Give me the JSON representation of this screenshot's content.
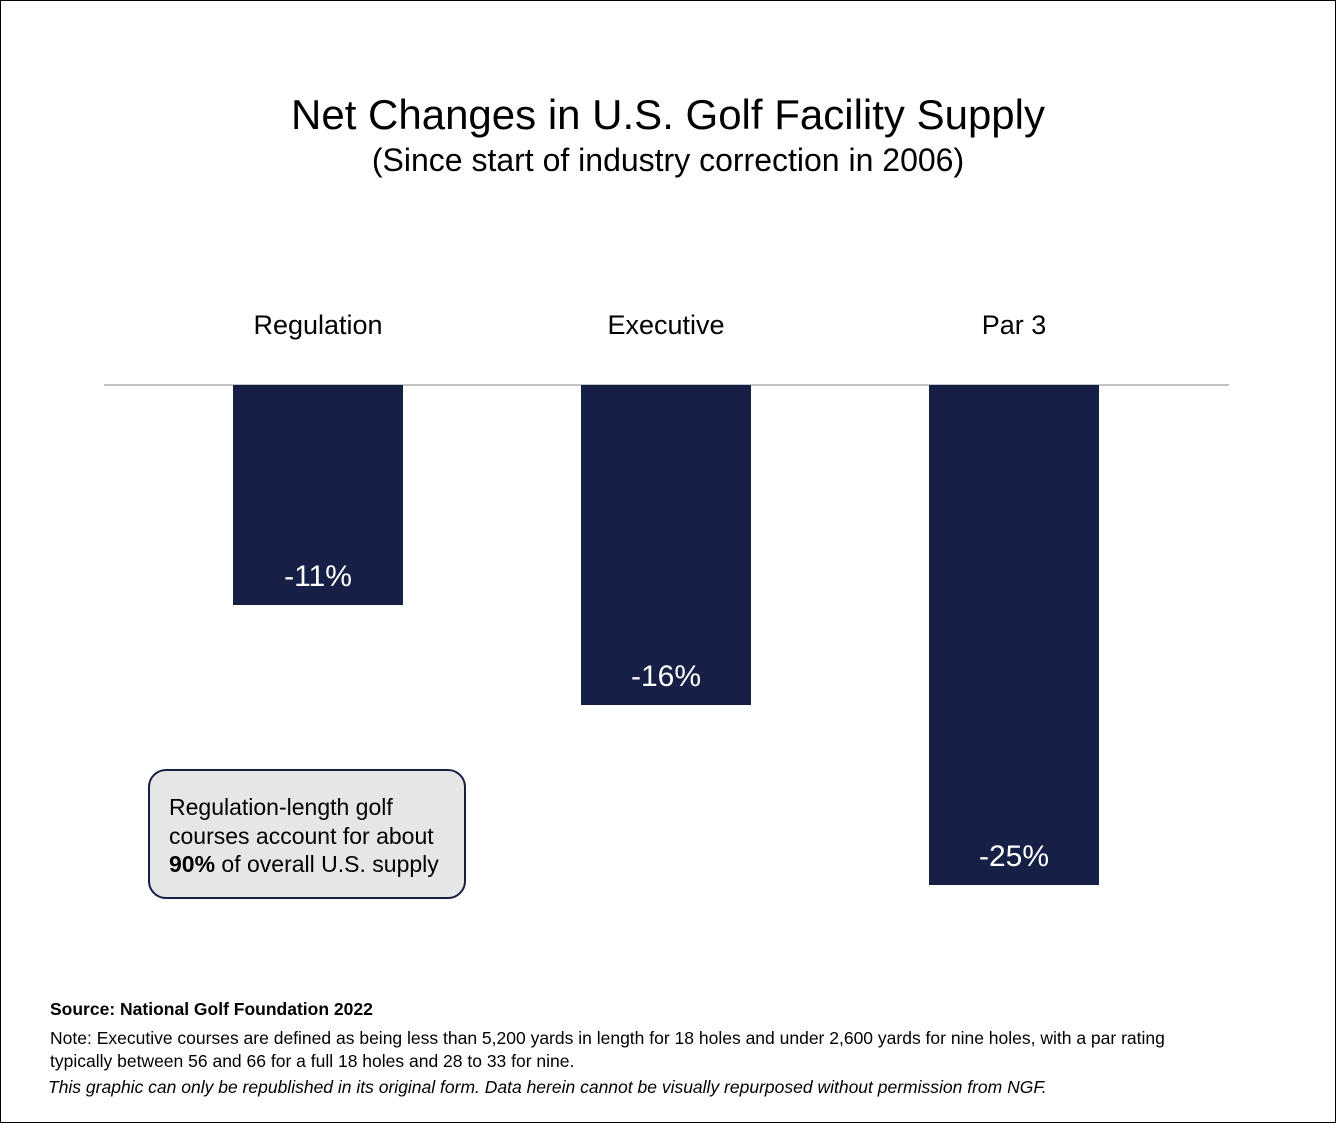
{
  "chart_data": {
    "type": "bar",
    "title": "Net Changes in U.S. Golf Facility Supply",
    "subtitle": "(Since start of industry correction in 2006)",
    "categories": [
      "Regulation",
      "Executive",
      "Par 3"
    ],
    "values": [
      -11,
      -16,
      -25
    ],
    "value_labels": [
      "-11%",
      "-16%",
      "-25%"
    ],
    "ylim": [
      -25,
      0
    ],
    "grid": false,
    "category_labels_position": "top",
    "bar_color": "#161f46",
    "label_color": "#ffffff"
  },
  "callout": {
    "line1": "Regulation-length golf",
    "line2": "courses account for about",
    "line3_bold": "90%",
    "line3_rest": " of overall U.S. supply"
  },
  "footer": {
    "source": "Source: National Golf Foundation 2022",
    "note": "Note: Executive courses are defined as being less than 5,200 yards in length for 18 holes and under 2,600 yards for nine holes, with a par rating typically between 56 and 66 for a full 18 holes and 28 to 33 for nine.",
    "disclaimer": "This graphic can only be republished in its original form. Data herein cannot be visually repurposed without permission from NGF."
  },
  "colors": {
    "bar": "#161f46",
    "baseline": "#888888",
    "callout_bg": "#e6e6e6",
    "callout_border": "#181f45"
  }
}
